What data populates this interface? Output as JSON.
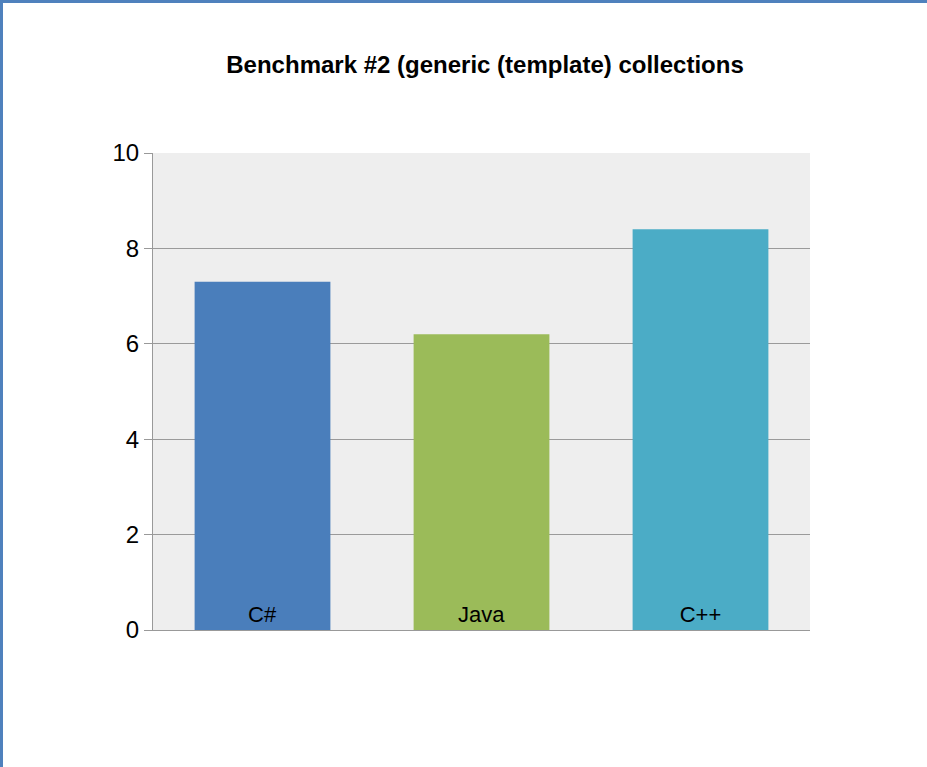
{
  "chart_data": {
    "type": "bar",
    "title": "Benchmark #2 (generic (template) collections",
    "categories": [
      "C#",
      "Java",
      "C++"
    ],
    "values": [
      7.3,
      6.2,
      8.4
    ],
    "colors": [
      "#4a7ebb",
      "#9bbb59",
      "#4bacc6"
    ],
    "ylim": [
      0,
      10
    ],
    "yticks": [
      0,
      2,
      4,
      6,
      8,
      10
    ],
    "grid": true,
    "tick_labels": "y"
  }
}
